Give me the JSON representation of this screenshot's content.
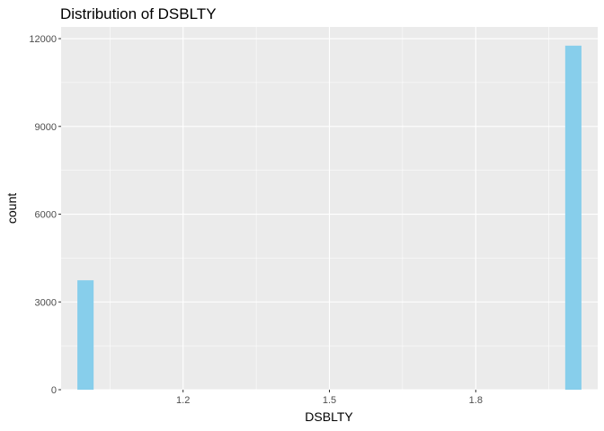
{
  "chart_data": {
    "type": "bar",
    "title": "Distribution of DSBLTY",
    "xlabel": "DSBLTY",
    "ylabel": "count",
    "bin_width": 0.0333,
    "bins": [
      {
        "center": 1.0,
        "count": 3740
      },
      {
        "center": 2.0,
        "count": 11760
      }
    ],
    "xlim": [
      0.95,
      2.05
    ],
    "ylim": [
      0,
      12400
    ],
    "x_ticks": [
      1.2,
      1.5,
      1.8
    ],
    "x_tick_labels": [
      "1.2",
      "1.5",
      "1.8"
    ],
    "y_ticks": [
      0,
      3000,
      6000,
      9000,
      12000
    ],
    "y_tick_labels": [
      "0",
      "3000",
      "6000",
      "9000",
      "12000"
    ],
    "grid": true,
    "bar_color": "#87CEEB",
    "panel_background": "#EBEBEB",
    "grid_color": "#FFFFFF"
  }
}
